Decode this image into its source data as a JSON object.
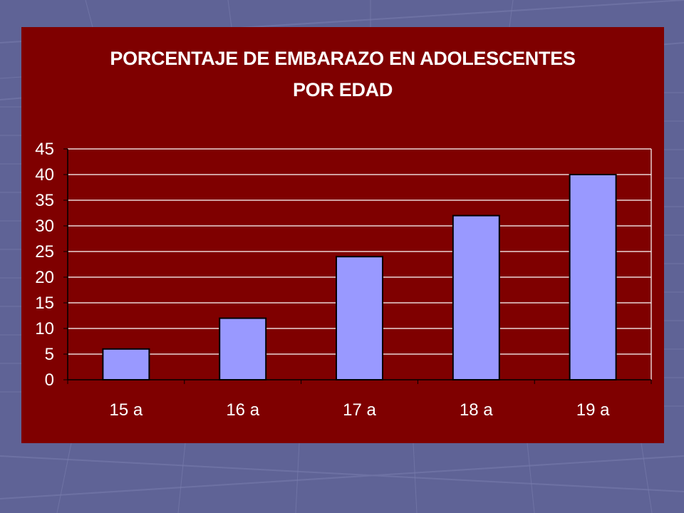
{
  "theme": {
    "slide_bg": "#5f6396",
    "panel_bg": "#7f0000",
    "bar_fill": "#9999ff",
    "bar_stroke": "#000000",
    "grid_color": "#ffffff",
    "text_color": "#ffffff"
  },
  "chart_data": {
    "type": "bar",
    "title": "PORCENTAJE DE  EMBARAZO EN ADOLESCENTES",
    "subtitle": "POR EDAD",
    "xlabel": "",
    "ylabel": "",
    "categories": [
      "15 a",
      "16 a",
      "17 a",
      "18 a",
      "19 a"
    ],
    "values": [
      6,
      12,
      24,
      32,
      40
    ],
    "ylim": [
      0,
      45
    ],
    "yticks": [
      0,
      5,
      10,
      15,
      20,
      25,
      30,
      35,
      40,
      45
    ],
    "grid": true,
    "legend": "none"
  }
}
